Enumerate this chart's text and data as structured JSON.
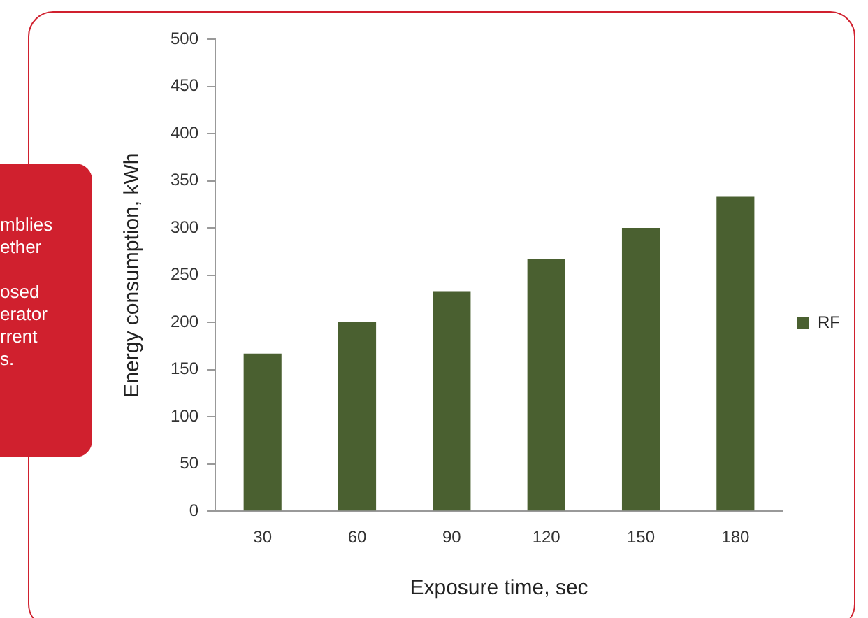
{
  "chart_data": {
    "type": "bar",
    "xlabel": "Exposure time, sec",
    "ylabel": "Energy consumption, kWh",
    "categories": [
      "30",
      "60",
      "90",
      "120",
      "150",
      "180"
    ],
    "series": [
      {
        "name": "RF",
        "color": "#4a6030",
        "values": [
          167,
          200,
          233,
          267,
          300,
          333
        ]
      }
    ],
    "ylim": [
      0,
      500
    ],
    "yticks": [
      0,
      50,
      100,
      150,
      200,
      250,
      300,
      350,
      400,
      450,
      500
    ],
    "grid": false,
    "legend": "right",
    "annotations": [
      "mblies",
      "ether",
      "osed",
      "erator",
      "rrent",
      "s."
    ]
  }
}
